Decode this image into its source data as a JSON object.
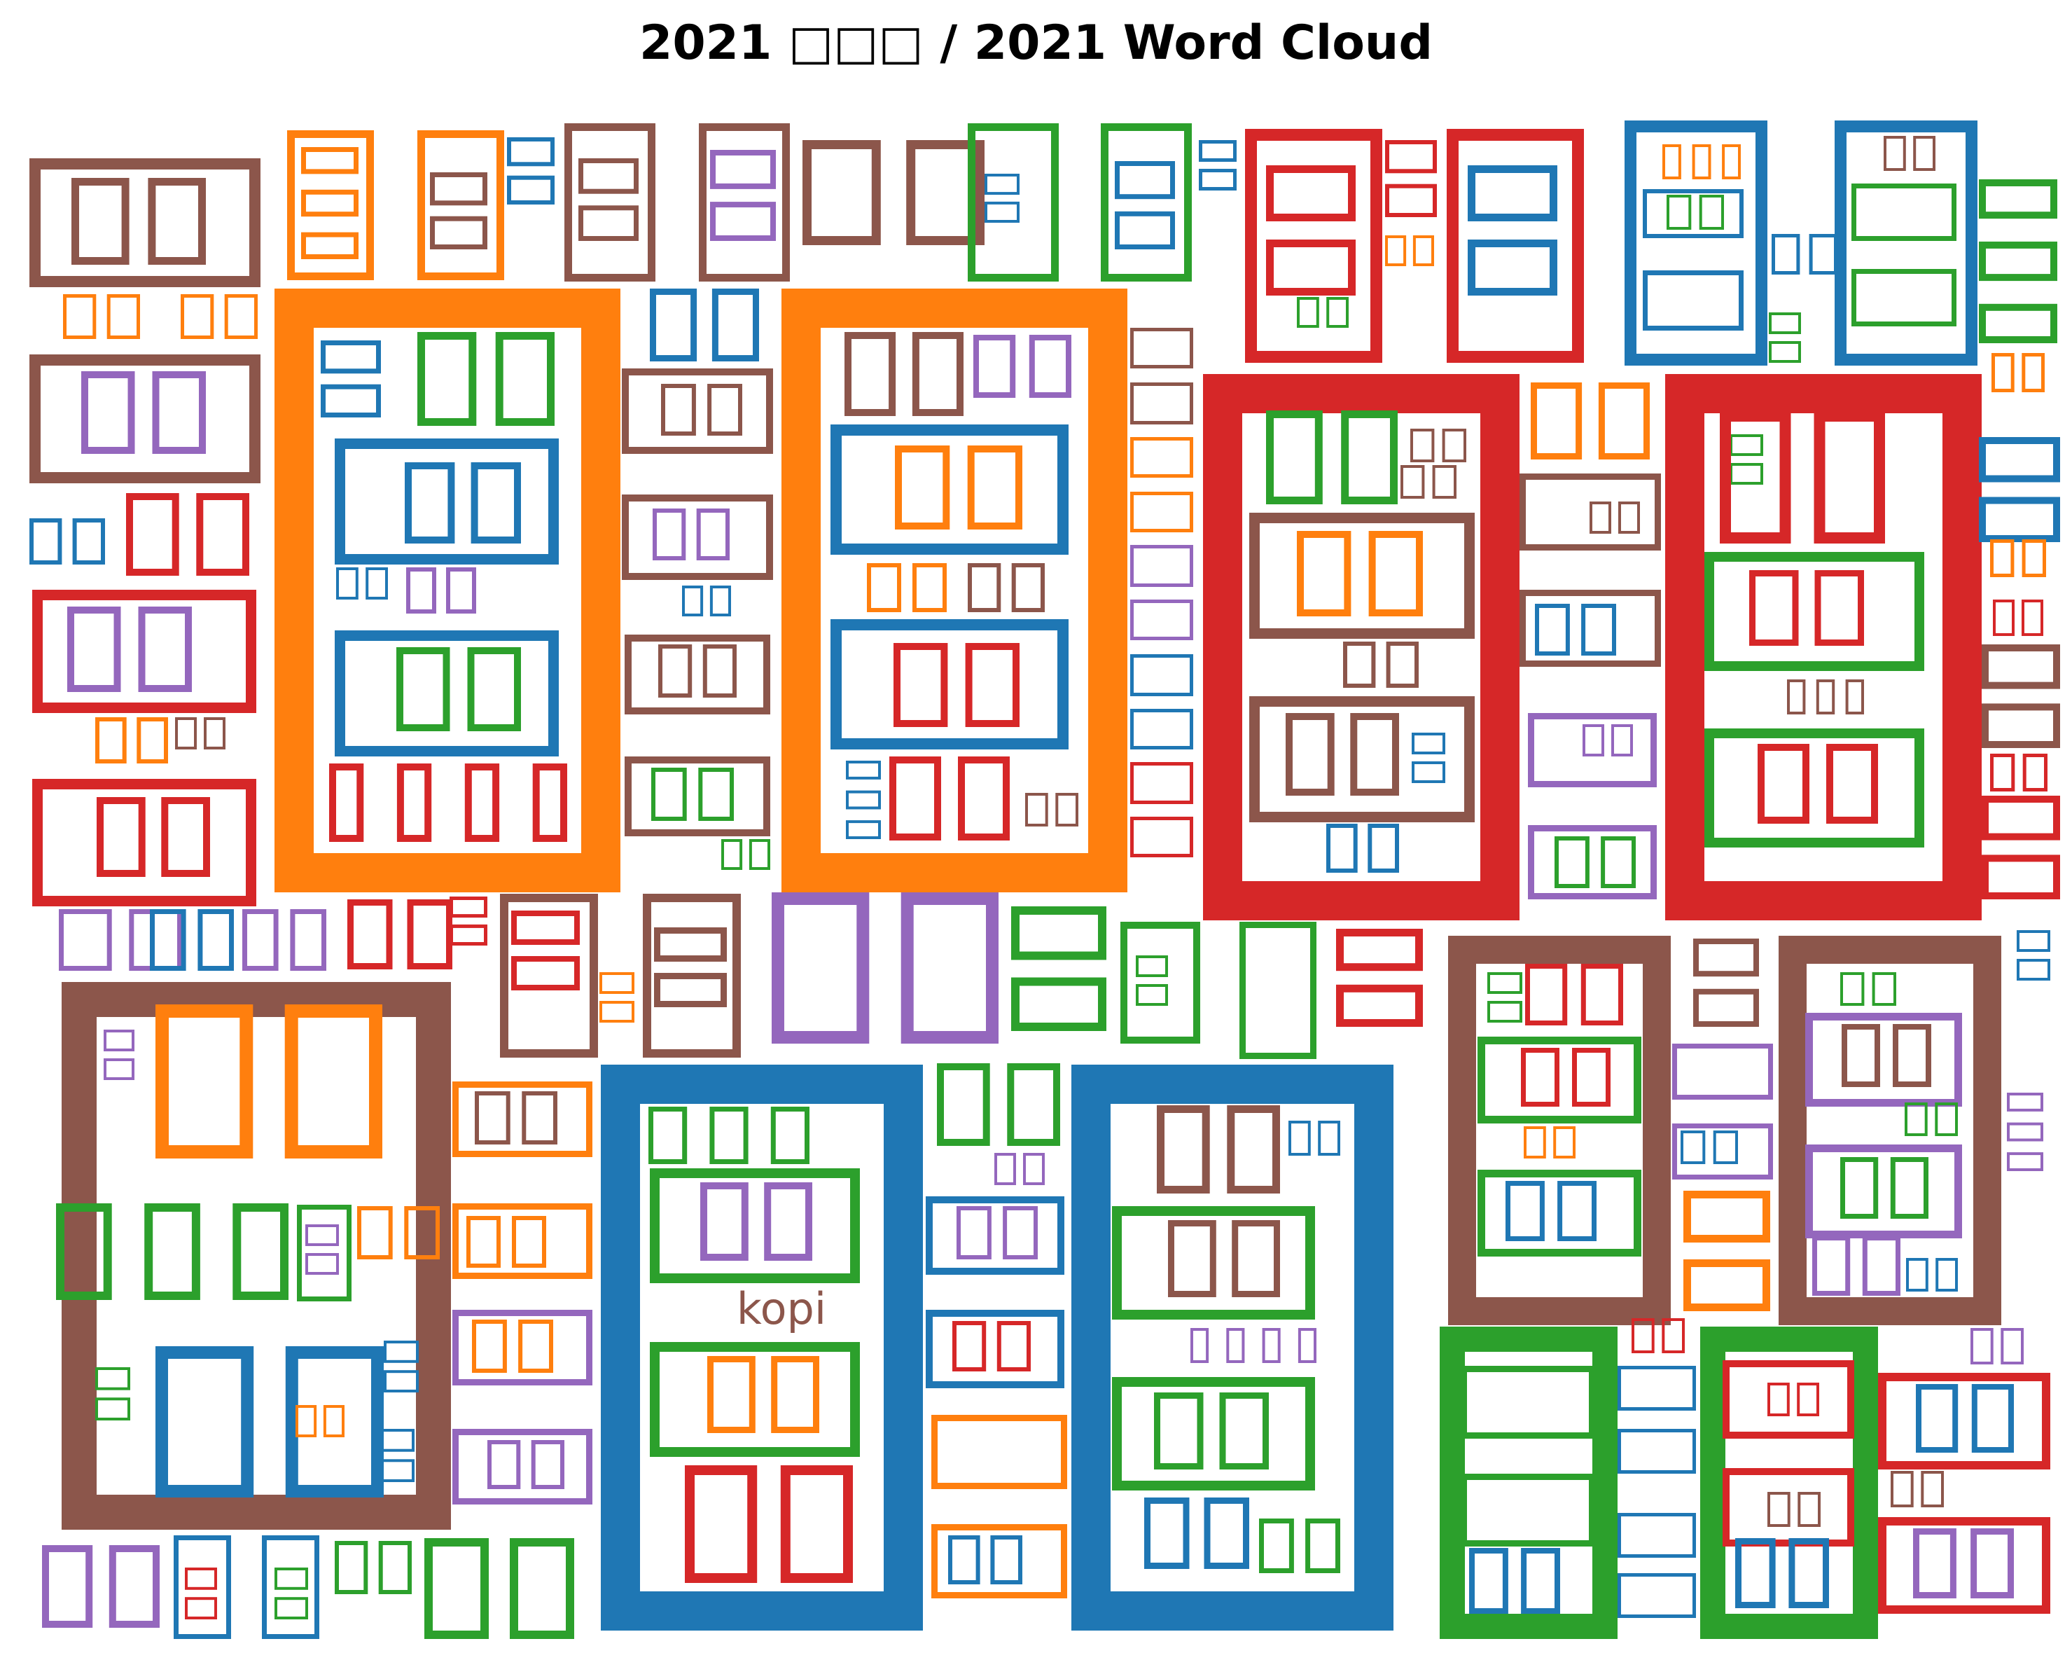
{
  "chart_data": {
    "type": "wordcloud",
    "title": "2021 □□□ / 2021 Word Cloud",
    "palette": {
      "orange": "#ff7f0e",
      "brown": "#8c564b",
      "blue": "#1f77b4",
      "purple": "#9467bd",
      "green": "#2ca02c",
      "red": "#d62728"
    },
    "missing_glyph": "□",
    "visible_words": [
      {
        "text": "kopi",
        "color": "brown"
      }
    ]
  }
}
